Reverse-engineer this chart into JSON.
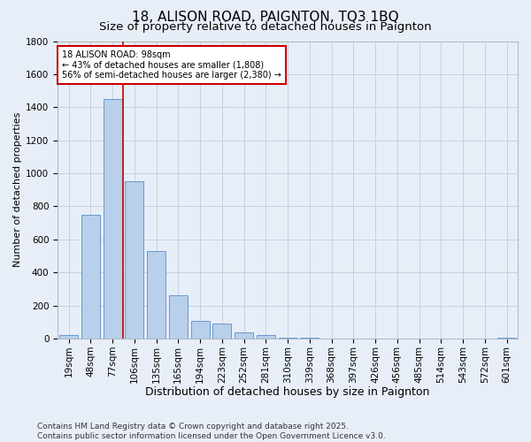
{
  "title": "18, ALISON ROAD, PAIGNTON, TQ3 1BQ",
  "subtitle": "Size of property relative to detached houses in Paignton",
  "xlabel": "Distribution of detached houses by size in Paignton",
  "ylabel": "Number of detached properties",
  "categories": [
    "19sqm",
    "48sqm",
    "77sqm",
    "106sqm",
    "135sqm",
    "165sqm",
    "194sqm",
    "223sqm",
    "252sqm",
    "281sqm",
    "310sqm",
    "339sqm",
    "368sqm",
    "397sqm",
    "426sqm",
    "456sqm",
    "485sqm",
    "514sqm",
    "543sqm",
    "572sqm",
    "601sqm"
  ],
  "values": [
    20,
    750,
    1450,
    950,
    530,
    265,
    105,
    90,
    40,
    20,
    5,
    5,
    2,
    2,
    1,
    1,
    1,
    1,
    1,
    1,
    5
  ],
  "bar_color": "#b8d0ea",
  "bar_edge_color": "#6699cc",
  "background_color": "#e8eef8",
  "grid_color": "#c0cce0",
  "vline_position": 2.5,
  "vline_color": "#cc0000",
  "annotation_text": "18 ALISON ROAD: 98sqm\n← 43% of detached houses are smaller (1,808)\n56% of semi-detached houses are larger (2,380) →",
  "annotation_box_color": "#ffffff",
  "annotation_box_edge": "#cc0000",
  "ylim": [
    0,
    1800
  ],
  "yticks": [
    0,
    200,
    400,
    600,
    800,
    1000,
    1200,
    1400,
    1600,
    1800
  ],
  "footer": "Contains HM Land Registry data © Crown copyright and database right 2025.\nContains public sector information licensed under the Open Government Licence v3.0.",
  "title_fontsize": 11,
  "subtitle_fontsize": 9.5,
  "xlabel_fontsize": 9,
  "ylabel_fontsize": 8,
  "tick_fontsize": 7.5,
  "footer_fontsize": 6.5,
  "annotation_fontsize": 7
}
